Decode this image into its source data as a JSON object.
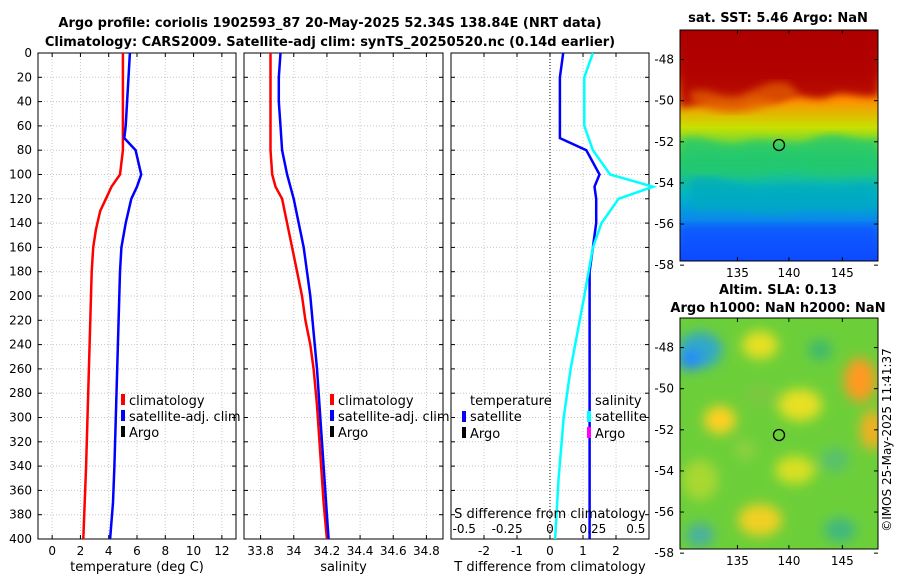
{
  "title": {
    "line1": "Argo profile: coriolis 1902593_87 20-May-2025 52.34S 138.84E (NRT data)",
    "line2": "Climatology: CARS2009. Satellite-adj clim: synTS_20250520.nc (0.14d earlier)"
  },
  "colors": {
    "climatology": "#ff0000",
    "satellite": "#0000ff",
    "argo": "#000000",
    "sal_satellite": "#00ffff",
    "sal_argo": "#ff00ff"
  },
  "chart_data": [
    {
      "id": "temperature",
      "type": "line",
      "xlabel": "temperature (deg C)",
      "xlim": [
        -1,
        13
      ],
      "xticks": [
        0,
        2,
        4,
        6,
        8,
        10,
        12
      ],
      "ylim": [
        0,
        400
      ],
      "yticks": [
        0,
        20,
        40,
        60,
        80,
        100,
        120,
        140,
        160,
        180,
        200,
        220,
        240,
        260,
        280,
        300,
        320,
        340,
        360,
        380,
        400
      ],
      "series": [
        {
          "name": "climatology",
          "color": "#ff0000",
          "points": [
            [
              5.0,
              0
            ],
            [
              5.0,
              20
            ],
            [
              5.0,
              40
            ],
            [
              5.0,
              60
            ],
            [
              5.0,
              80
            ],
            [
              4.8,
              100
            ],
            [
              4.2,
              110
            ],
            [
              3.8,
              120
            ],
            [
              3.4,
              130
            ],
            [
              3.1,
              145
            ],
            [
              2.9,
              160
            ],
            [
              2.8,
              180
            ],
            [
              2.7,
              220
            ],
            [
              2.6,
              260
            ],
            [
              2.5,
              300
            ],
            [
              2.4,
              340
            ],
            [
              2.3,
              370
            ],
            [
              2.2,
              400
            ]
          ]
        },
        {
          "name": "satellite-adj. clim",
          "color": "#0000ff",
          "points": [
            [
              5.5,
              0
            ],
            [
              5.4,
              20
            ],
            [
              5.3,
              40
            ],
            [
              5.2,
              60
            ],
            [
              5.1,
              70
            ],
            [
              5.9,
              80
            ],
            [
              6.3,
              100
            ],
            [
              6.0,
              110
            ],
            [
              5.6,
              120
            ],
            [
              5.2,
              140
            ],
            [
              4.9,
              160
            ],
            [
              4.8,
              180
            ],
            [
              4.7,
              220
            ],
            [
              4.6,
              260
            ],
            [
              4.5,
              300
            ],
            [
              4.4,
              340
            ],
            [
              4.3,
              370
            ],
            [
              4.1,
              400
            ]
          ]
        },
        {
          "name": "Argo",
          "color": "#000000",
          "points": []
        }
      ],
      "legend": [
        "climatology",
        "satellite-adj. clim",
        "Argo"
      ]
    },
    {
      "id": "salinity",
      "type": "line",
      "xlabel": "salinity",
      "xlim": [
        33.7,
        34.9
      ],
      "xticks": [
        "33.8",
        "34",
        "34.2",
        "34.4",
        "34.6",
        "34.8"
      ],
      "ylim": [
        0,
        400
      ],
      "series": [
        {
          "name": "climatology",
          "color": "#ff0000",
          "points": [
            [
              33.86,
              0
            ],
            [
              33.86,
              20
            ],
            [
              33.86,
              40
            ],
            [
              33.86,
              60
            ],
            [
              33.86,
              80
            ],
            [
              33.87,
              100
            ],
            [
              33.89,
              110
            ],
            [
              33.93,
              120
            ],
            [
              33.96,
              140
            ],
            [
              33.99,
              160
            ],
            [
              34.02,
              180
            ],
            [
              34.05,
              200
            ],
            [
              34.07,
              220
            ],
            [
              34.1,
              240
            ],
            [
              34.12,
              260
            ],
            [
              34.14,
              290
            ],
            [
              34.16,
              330
            ],
            [
              34.18,
              370
            ],
            [
              34.2,
              400
            ]
          ]
        },
        {
          "name": "satellite-adj. clim",
          "color": "#0000ff",
          "points": [
            [
              33.92,
              0
            ],
            [
              33.91,
              20
            ],
            [
              33.91,
              40
            ],
            [
              33.92,
              60
            ],
            [
              33.93,
              80
            ],
            [
              33.96,
              100
            ],
            [
              34.0,
              120
            ],
            [
              34.03,
              140
            ],
            [
              34.06,
              160
            ],
            [
              34.08,
              180
            ],
            [
              34.1,
              200
            ],
            [
              34.12,
              230
            ],
            [
              34.14,
              260
            ],
            [
              34.16,
              300
            ],
            [
              34.18,
              340
            ],
            [
              34.2,
              380
            ],
            [
              34.21,
              400
            ]
          ]
        },
        {
          "name": "Argo",
          "color": "#000000",
          "points": []
        }
      ],
      "legend": [
        "climatology",
        "satellite-adj. clim",
        "Argo"
      ]
    },
    {
      "id": "difference",
      "type": "line",
      "xlabel": "T difference from climatology",
      "xlim": [
        -3,
        3
      ],
      "xticks": [
        "-2",
        "-1",
        "0",
        "1",
        "2"
      ],
      "top_label": "S difference from climatology",
      "top_ticks": [
        "-0.5",
        "-0.25",
        "0",
        "0.25",
        "0.5"
      ],
      "ylim": [
        0,
        400
      ],
      "series": [
        {
          "name": "temperature satellite",
          "color": "#0000ff",
          "points": [
            [
              0.4,
              0
            ],
            [
              0.3,
              20
            ],
            [
              0.3,
              40
            ],
            [
              0.3,
              60
            ],
            [
              0.3,
              70
            ],
            [
              1.1,
              80
            ],
            [
              1.5,
              100
            ],
            [
              1.35,
              110
            ],
            [
              1.4,
              120
            ],
            [
              1.4,
              140
            ],
            [
              1.3,
              160
            ],
            [
              1.2,
              180
            ],
            [
              1.2,
              240
            ],
            [
              1.2,
              300
            ],
            [
              1.2,
              360
            ],
            [
              1.2,
              400
            ]
          ]
        },
        {
          "name": "salinity satellite",
          "color": "#00ffff",
          "points": [
            [
              0.25,
              0
            ],
            [
              0.2,
              20
            ],
            [
              0.2,
              40
            ],
            [
              0.2,
              60
            ],
            [
              0.25,
              80
            ],
            [
              0.35,
              100
            ],
            [
              0.6,
              110
            ],
            [
              0.4,
              120
            ],
            [
              0.3,
              140
            ],
            [
              0.25,
              160
            ],
            [
              0.2,
              200
            ],
            [
              0.12,
              260
            ],
            [
              0.08,
              300
            ],
            [
              0.05,
              350
            ],
            [
              0.03,
              400
            ]
          ]
        }
      ],
      "legend_left_title": "temperature",
      "legend_right_title": "salinity",
      "legend_items": [
        "satellite",
        "Argo"
      ]
    },
    {
      "id": "sst_map",
      "type": "heatmap",
      "title": "sat. SST: 5.46 Argo: NaN",
      "xticks": [
        "135",
        "140",
        "145"
      ],
      "yticks": [
        "-48",
        "-50",
        "-52",
        "-54",
        "-56",
        "-58"
      ],
      "marker": [
        138.84,
        -52.34
      ]
    },
    {
      "id": "sla_map",
      "type": "heatmap",
      "title1": "Altim. SLA: 0.13",
      "title2": "Argo h1000: NaN h2000: NaN",
      "xticks": [
        "135",
        "140",
        "145"
      ],
      "yticks": [
        "-48",
        "-50",
        "-52",
        "-54",
        "-56",
        "-58"
      ],
      "marker": [
        138.84,
        -52.34
      ]
    }
  ],
  "watermark": "©IMOS 25-May-2025 11:41:37"
}
